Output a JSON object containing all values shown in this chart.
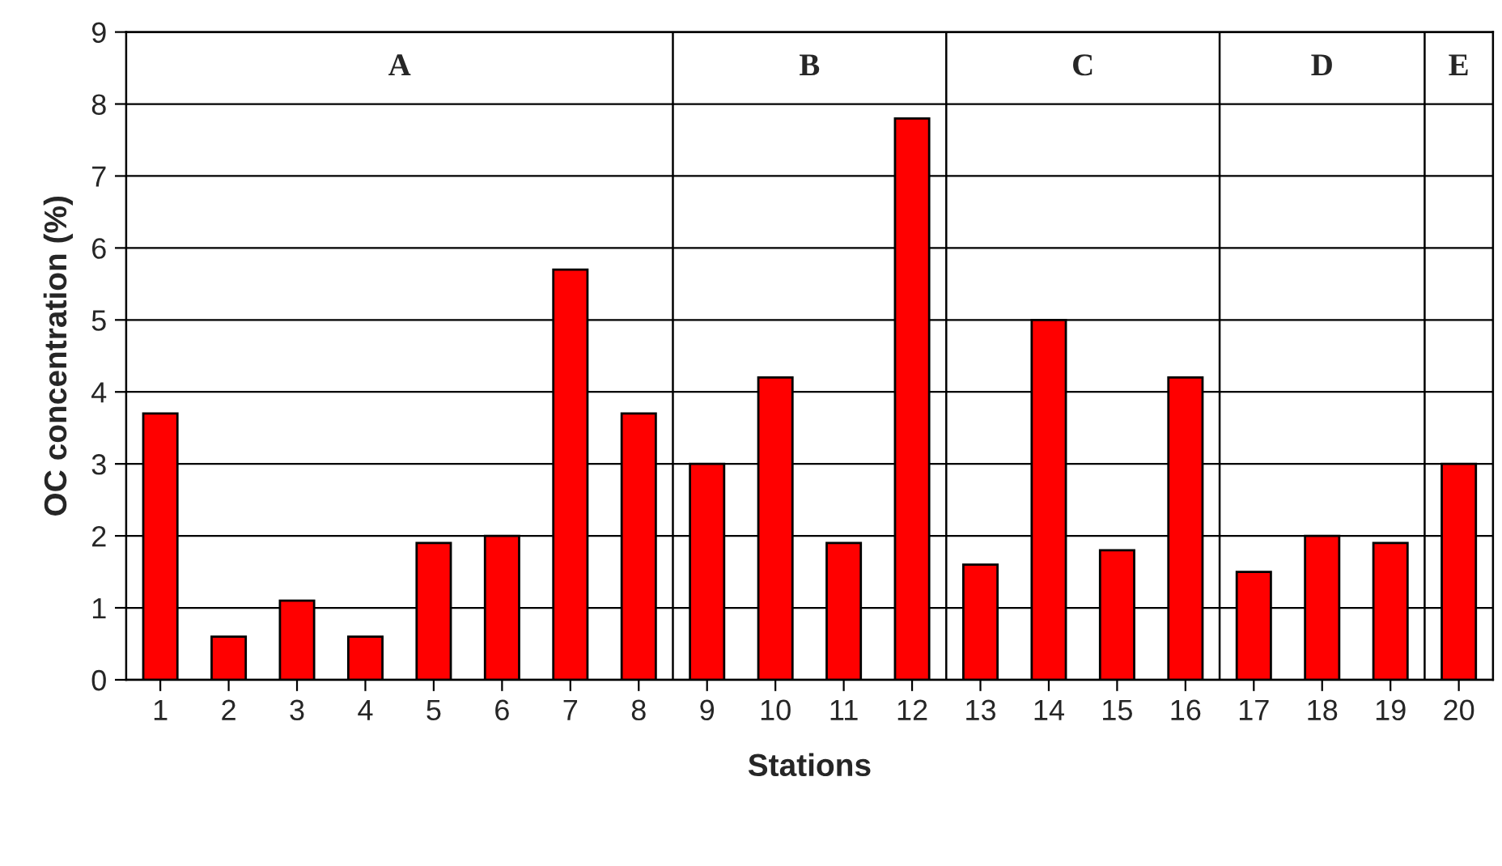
{
  "chart_data": {
    "type": "bar",
    "xlabel": "Stations",
    "ylabel": "OC concentration (%)",
    "x": [
      1,
      2,
      3,
      4,
      5,
      6,
      7,
      8,
      9,
      10,
      11,
      12,
      13,
      14,
      15,
      16,
      17,
      18,
      19,
      20
    ],
    "values": [
      3.7,
      0.6,
      1.1,
      0.6,
      1.9,
      2.0,
      5.7,
      3.7,
      3.0,
      4.2,
      1.9,
      7.8,
      1.6,
      5.0,
      1.8,
      4.2,
      1.5,
      2.0,
      1.9,
      3.0
    ],
    "color": "#ff0000",
    "xlim": [
      0.5,
      20.5
    ],
    "xticks": [
      1,
      2,
      3,
      4,
      5,
      6,
      7,
      8,
      9,
      10,
      11,
      12,
      13,
      14,
      15,
      16,
      17,
      18,
      19,
      20
    ],
    "ylim": [
      0,
      9
    ],
    "yticks": [
      0,
      1,
      2,
      3,
      4,
      5,
      6,
      7,
      8,
      9
    ],
    "grid": "y",
    "ref_lines": [
      {
        "axis": "x",
        "value": 8.5
      },
      {
        "axis": "x",
        "value": 12.5
      },
      {
        "axis": "x",
        "value": 16.5
      },
      {
        "axis": "x",
        "value": 19.5
      }
    ],
    "annotations": [
      "A",
      "B",
      "C",
      "D",
      "E"
    ]
  }
}
